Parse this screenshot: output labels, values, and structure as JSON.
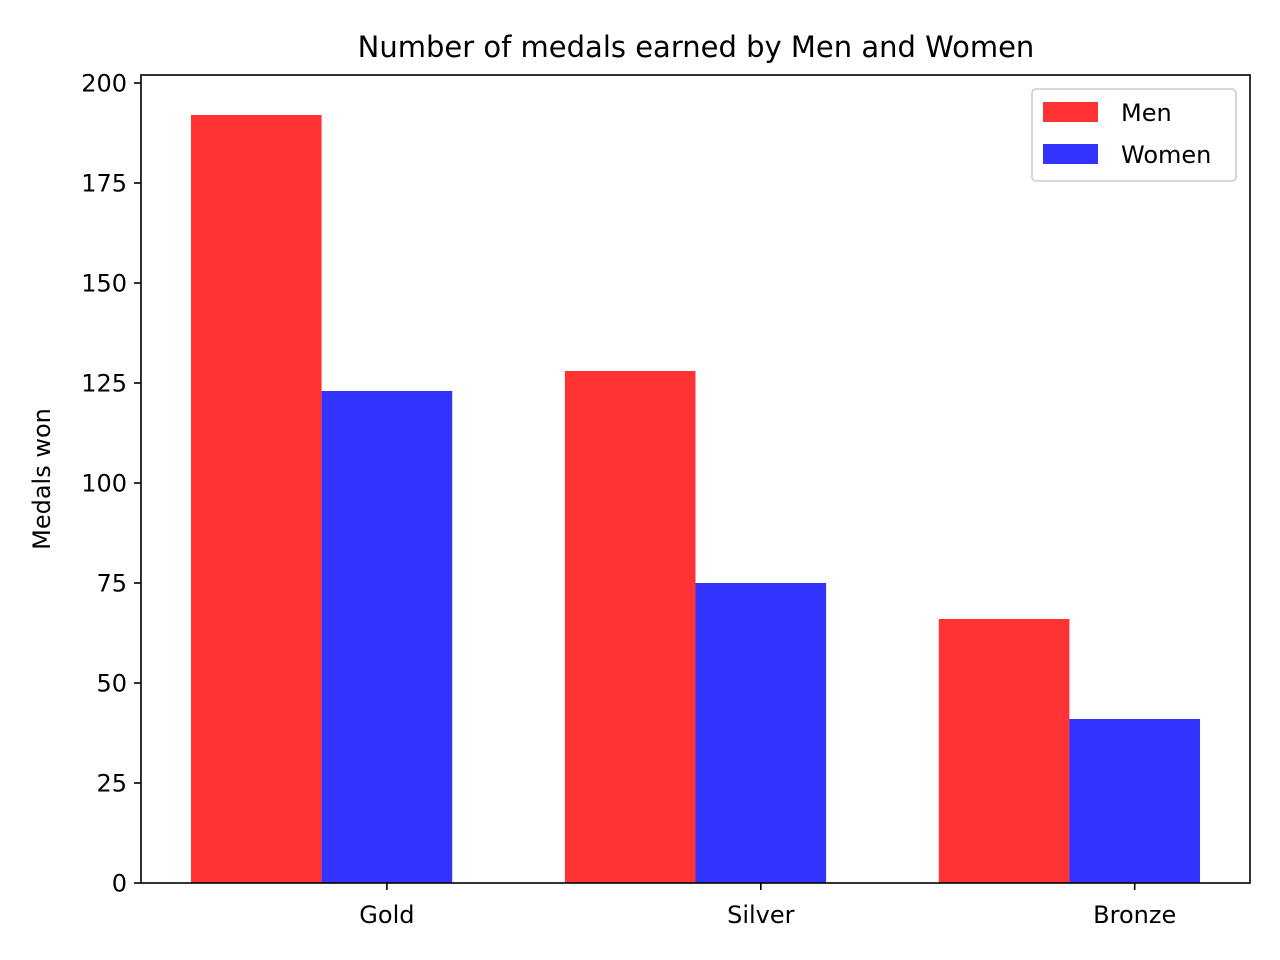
{
  "chart_data": {
    "type": "bar",
    "title": "Number of medals earned by Men and Women",
    "xlabel": "",
    "ylabel": "Medals won",
    "categories": [
      "Gold",
      "Silver",
      "Bronze"
    ],
    "series": [
      {
        "name": "Men",
        "values": [
          192,
          128,
          66
        ],
        "color": "#ff3333"
      },
      {
        "name": "Women",
        "values": [
          123,
          75,
          41
        ],
        "color": "#3333ff"
      }
    ],
    "ylim": [
      0,
      202
    ],
    "yticks": [
      0,
      25,
      50,
      75,
      100,
      125,
      150,
      175,
      200
    ],
    "grid": false,
    "legend_position": "top-right"
  }
}
